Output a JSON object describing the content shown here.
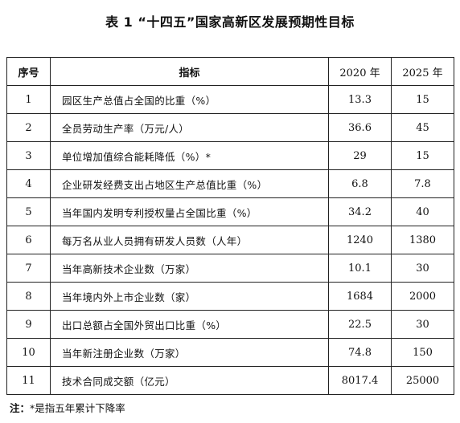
{
  "title": "表 1 “十四五”国家高新区发展预期性目标",
  "table": {
    "headers": [
      "序号",
      "指标",
      "2020 年",
      "2025 年"
    ],
    "rows": [
      {
        "no": "1",
        "name": "园区生产总值占全国的比重（%）",
        "y2020": "13.3",
        "y2025": "15"
      },
      {
        "no": "2",
        "name": "全员劳动生产率（万元/人）",
        "y2020": "36.6",
        "y2025": "45"
      },
      {
        "no": "3",
        "name": "单位增加值综合能耗降低（%）*",
        "y2020": "29",
        "y2025": "15"
      },
      {
        "no": "4",
        "name": "企业研发经费支出占地区生产总值比重（%）",
        "y2020": "6.8",
        "y2025": "7.8"
      },
      {
        "no": "5",
        "name": "当年国内发明专利授权量占全国比重（%）",
        "y2020": "34.2",
        "y2025": "40"
      },
      {
        "no": "6",
        "name": "每万名从业人员拥有研发人员数（人年）",
        "y2020": "1240",
        "y2025": "1380"
      },
      {
        "no": "7",
        "name": "当年高新技术企业数（万家）",
        "y2020": "10.1",
        "y2025": "30"
      },
      {
        "no": "8",
        "name": "当年境内外上市企业数（家）",
        "y2020": "1684",
        "y2025": "2000"
      },
      {
        "no": "9",
        "name": "出口总额占全国外贸出口比重（%）",
        "y2020": "22.5",
        "y2025": "30"
      },
      {
        "no": "10",
        "name": "当年新注册企业数（万家）",
        "y2020": "74.8",
        "y2025": "150"
      },
      {
        "no": "11",
        "name": "技术合同成交额（亿元）",
        "y2020": "8017.4",
        "y2025": "25000"
      }
    ]
  },
  "note": {
    "label": "注：",
    "text": "*是指五年累计下降率"
  }
}
